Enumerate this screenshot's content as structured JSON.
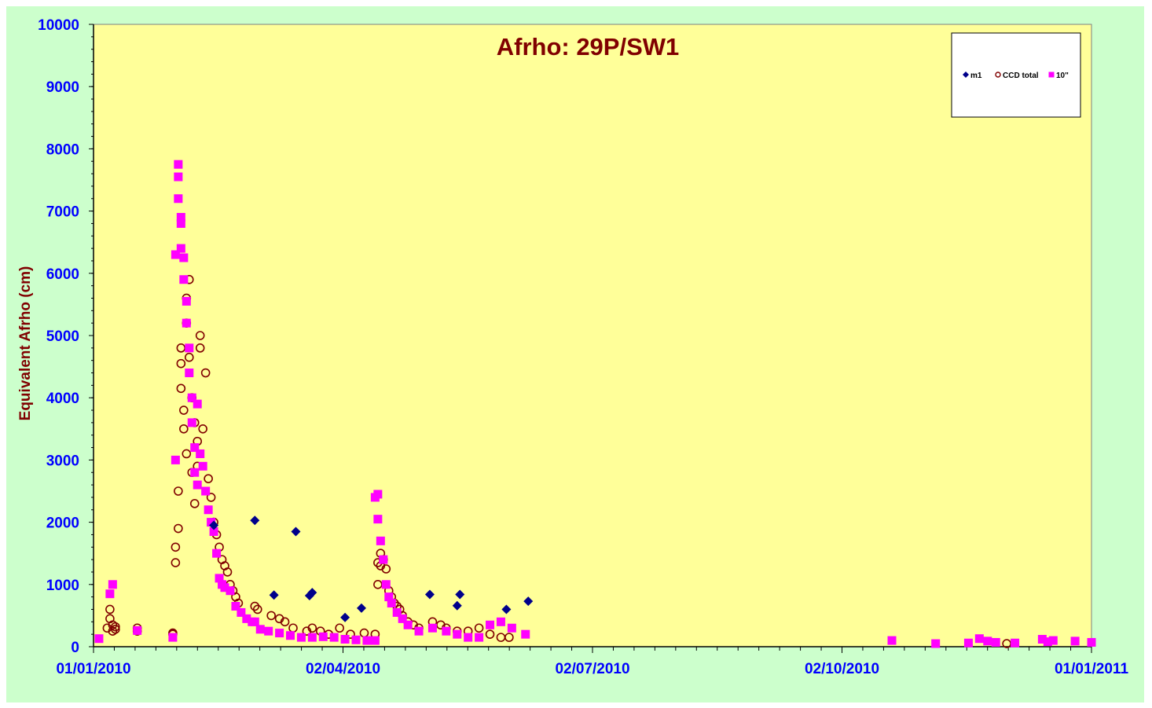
{
  "chart_data": {
    "type": "scatter",
    "title": "Afrho: 29P/SW1",
    "xlabel": "",
    "ylabel": "Equivalent  Afrho (cm)",
    "x_tick_labels": [
      "01/01/2010",
      "02/04/2010",
      "02/07/2010",
      "02/10/2010",
      "01/01/2011"
    ],
    "y_tick_labels": [
      "0",
      "1000",
      "2000",
      "3000",
      "4000",
      "5000",
      "6000",
      "7000",
      "8000",
      "9000",
      "10000"
    ],
    "x_range": [
      "2010-01-01",
      "2011-01-01"
    ],
    "ylim": [
      0,
      10000
    ],
    "grid": false,
    "legend_position": "top-right",
    "colors": {
      "plot_bg": "#ffff99",
      "outer_bg": "#ccffcc",
      "title": "#800000",
      "ylabel": "#800000",
      "x_tick_labels": "#0000ff",
      "y_tick_labels": "#0000ff"
    },
    "series": [
      {
        "name": "m1",
        "marker": "diamond",
        "color": "#00008b",
        "x": [
          "2010-02-14",
          "2010-03-01",
          "2010-03-08",
          "2010-03-16",
          "2010-03-21",
          "2010-03-22",
          "2010-04-03",
          "2010-04-09",
          "2010-05-04",
          "2010-05-14",
          "2010-05-15",
          "2010-06-01",
          "2010-06-09"
        ],
        "y": [
          1950,
          2030,
          830,
          1850,
          820,
          870,
          470,
          620,
          840,
          660,
          840,
          600,
          730
        ]
      },
      {
        "name": "CCD total",
        "marker": "circle-open",
        "color": "#800000",
        "x": [
          "2010-01-06",
          "2010-01-07",
          "2010-01-07",
          "2010-01-08",
          "2010-01-08",
          "2010-01-09",
          "2010-01-09",
          "2010-01-17",
          "2010-01-17",
          "2010-01-30",
          "2010-01-30",
          "2010-01-31",
          "2010-01-31",
          "2010-02-01",
          "2010-02-01",
          "2010-02-02",
          "2010-02-02",
          "2010-02-02",
          "2010-02-03",
          "2010-02-03",
          "2010-02-04",
          "2010-02-04",
          "2010-02-04",
          "2010-02-05",
          "2010-02-05",
          "2010-02-06",
          "2010-02-06",
          "2010-02-07",
          "2010-02-07",
          "2010-02-08",
          "2010-02-08",
          "2010-02-09",
          "2010-02-09",
          "2010-02-10",
          "2010-02-11",
          "2010-02-12",
          "2010-02-13",
          "2010-02-14",
          "2010-02-15",
          "2010-02-16",
          "2010-02-17",
          "2010-02-18",
          "2010-02-19",
          "2010-02-20",
          "2010-02-21",
          "2010-02-22",
          "2010-02-23",
          "2010-03-01",
          "2010-03-02",
          "2010-03-07",
          "2010-03-10",
          "2010-03-12",
          "2010-03-15",
          "2010-03-20",
          "2010-03-22",
          "2010-03-25",
          "2010-03-28",
          "2010-04-01",
          "2010-04-05",
          "2010-04-10",
          "2010-04-14",
          "2010-04-15",
          "2010-04-15",
          "2010-04-16",
          "2010-04-16",
          "2010-04-17",
          "2010-04-18",
          "2010-04-19",
          "2010-04-20",
          "2010-04-21",
          "2010-04-22",
          "2010-04-23",
          "2010-04-24",
          "2010-04-26",
          "2010-04-28",
          "2010-04-30",
          "2010-05-05",
          "2010-05-08",
          "2010-05-10",
          "2010-05-14",
          "2010-05-18",
          "2010-05-22",
          "2010-05-26",
          "2010-05-30",
          "2010-06-02",
          "2010-12-01"
        ],
        "y": [
          300,
          450,
          600,
          250,
          350,
          280,
          320,
          300,
          250,
          200,
          220,
          1350,
          1600,
          2500,
          1900,
          4150,
          4550,
          4800,
          3500,
          3800,
          5200,
          5600,
          3100,
          5900,
          4650,
          2800,
          4000,
          3600,
          2300,
          2900,
          3300,
          4800,
          5000,
          3500,
          4400,
          2700,
          2400,
          2000,
          1800,
          1600,
          1400,
          1300,
          1200,
          1000,
          900,
          800,
          700,
          650,
          600,
          500,
          450,
          400,
          300,
          250,
          300,
          250,
          200,
          300,
          200,
          220,
          200,
          1000,
          1350,
          1500,
          1300,
          1400,
          1250,
          900,
          800,
          700,
          650,
          600,
          500,
          400,
          350,
          300,
          400,
          350,
          300,
          250,
          250,
          300,
          200,
          150,
          150,
          50
        ]
      },
      {
        "name": "10\"",
        "marker": "square",
        "color": "#ff00ff",
        "x": [
          "2010-01-03",
          "2010-01-07",
          "2010-01-08",
          "2010-01-17",
          "2010-01-30",
          "2010-01-31",
          "2010-01-31",
          "2010-02-01",
          "2010-02-01",
          "2010-02-01",
          "2010-02-02",
          "2010-02-02",
          "2010-02-02",
          "2010-02-03",
          "2010-02-03",
          "2010-02-04",
          "2010-02-04",
          "2010-02-05",
          "2010-02-05",
          "2010-02-06",
          "2010-02-06",
          "2010-02-07",
          "2010-02-07",
          "2010-02-08",
          "2010-02-08",
          "2010-02-09",
          "2010-02-10",
          "2010-02-11",
          "2010-02-12",
          "2010-02-13",
          "2010-02-14",
          "2010-02-15",
          "2010-02-16",
          "2010-02-17",
          "2010-02-18",
          "2010-02-20",
          "2010-02-22",
          "2010-02-24",
          "2010-02-26",
          "2010-02-28",
          "2010-03-01",
          "2010-03-03",
          "2010-03-06",
          "2010-03-10",
          "2010-03-14",
          "2010-03-18",
          "2010-03-22",
          "2010-03-26",
          "2010-03-30",
          "2010-04-03",
          "2010-04-07",
          "2010-04-11",
          "2010-04-14",
          "2010-04-14",
          "2010-04-15",
          "2010-04-15",
          "2010-04-16",
          "2010-04-17",
          "2010-04-18",
          "2010-04-19",
          "2010-04-20",
          "2010-04-22",
          "2010-04-24",
          "2010-04-26",
          "2010-04-30",
          "2010-05-05",
          "2010-05-10",
          "2010-05-14",
          "2010-05-18",
          "2010-05-22",
          "2010-05-26",
          "2010-05-30",
          "2010-06-03",
          "2010-06-08",
          "2010-10-20",
          "2010-11-05",
          "2010-11-17",
          "2010-11-21",
          "2010-11-24",
          "2010-11-27",
          "2010-12-04",
          "2010-12-14",
          "2010-12-16",
          "2010-12-18",
          "2010-12-26",
          "2011-01-01"
        ],
        "y": [
          130,
          850,
          1000,
          260,
          150,
          3000,
          6300,
          7750,
          7200,
          7550,
          6400,
          6800,
          6900,
          6250,
          5900,
          5550,
          5200,
          4800,
          4400,
          4000,
          3600,
          3200,
          2800,
          2600,
          3900,
          3100,
          2900,
          2500,
          2200,
          2000,
          1850,
          1500,
          1100,
          1000,
          950,
          900,
          650,
          550,
          450,
          400,
          400,
          280,
          250,
          220,
          180,
          150,
          150,
          160,
          150,
          120,
          110,
          100,
          100,
          2400,
          2450,
          2050,
          1700,
          1400,
          1000,
          800,
          700,
          550,
          450,
          350,
          250,
          300,
          250,
          200,
          150,
          150,
          350,
          400,
          300,
          200,
          100,
          50,
          60,
          130,
          90,
          70,
          60,
          120,
          80,
          100,
          90,
          70
        ]
      }
    ]
  }
}
